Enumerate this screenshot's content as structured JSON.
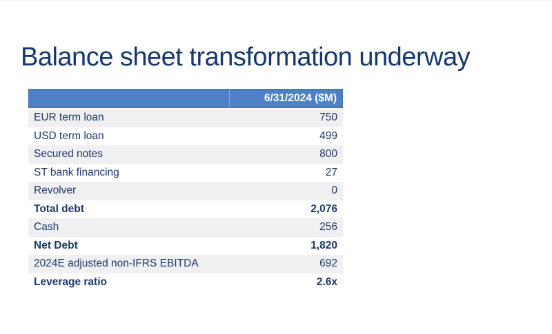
{
  "page": {
    "title": "Balance sheet transformation underway"
  },
  "table": {
    "header": {
      "value_column": "6/31/2024 ($M)"
    },
    "rows": [
      {
        "label": "EUR term loan",
        "value": "750",
        "bold": false
      },
      {
        "label": "USD term loan",
        "value": "499",
        "bold": false
      },
      {
        "label": "Secured notes",
        "value": "800",
        "bold": false
      },
      {
        "label": "ST bank financing",
        "value": "27",
        "bold": false
      },
      {
        "label": "Revolver",
        "value": "0",
        "bold": false
      },
      {
        "label": "Total debt",
        "value": "2,076",
        "bold": true
      },
      {
        "label": "Cash",
        "value": "256",
        "bold": false
      },
      {
        "label": "Net Debt",
        "value": "1,820",
        "bold": true
      },
      {
        "label": "2024E adjusted non-IFRS EBITDA",
        "value": "692",
        "bold": false
      },
      {
        "label": "Leverage ratio",
        "value": "2.6x",
        "bold": true
      }
    ]
  },
  "colors": {
    "title_color": "#16376f",
    "header_bg": "#4d80c4",
    "header_border": "#3e70b2",
    "header_text": "#ffffff",
    "row_text": "#1d3868",
    "stripe_bg": "#f0f0f2",
    "page_bg": "#ffffff"
  }
}
